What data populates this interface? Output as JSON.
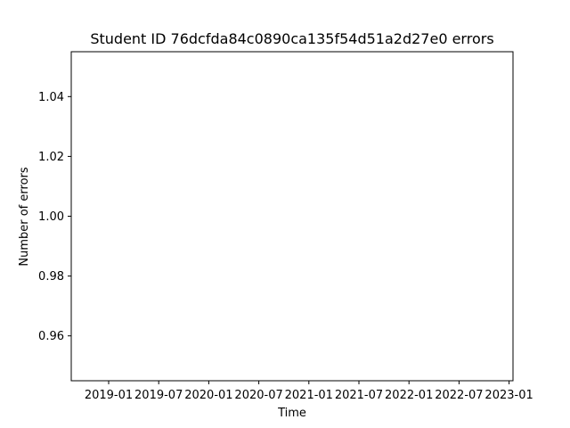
{
  "chart_data": {
    "type": "line",
    "title": "Student ID 76dcfda84c0890ca135f54d51a2d27e0 errors",
    "xlabel": "Time",
    "ylabel": "Number of errors",
    "x_ticks": [
      "2019-01",
      "2019-07",
      "2020-01",
      "2020-07",
      "2021-01",
      "2021-07",
      "2022-01",
      "2022-07",
      "2023-01"
    ],
    "y_ticks": [
      0.96,
      0.98,
      1.0,
      1.02,
      1.04
    ],
    "y_tick_labels": [
      "0.96",
      "0.98",
      "1.00",
      "1.02",
      "1.04"
    ],
    "ylim": [
      0.945,
      1.055
    ],
    "grid": false,
    "series": []
  }
}
